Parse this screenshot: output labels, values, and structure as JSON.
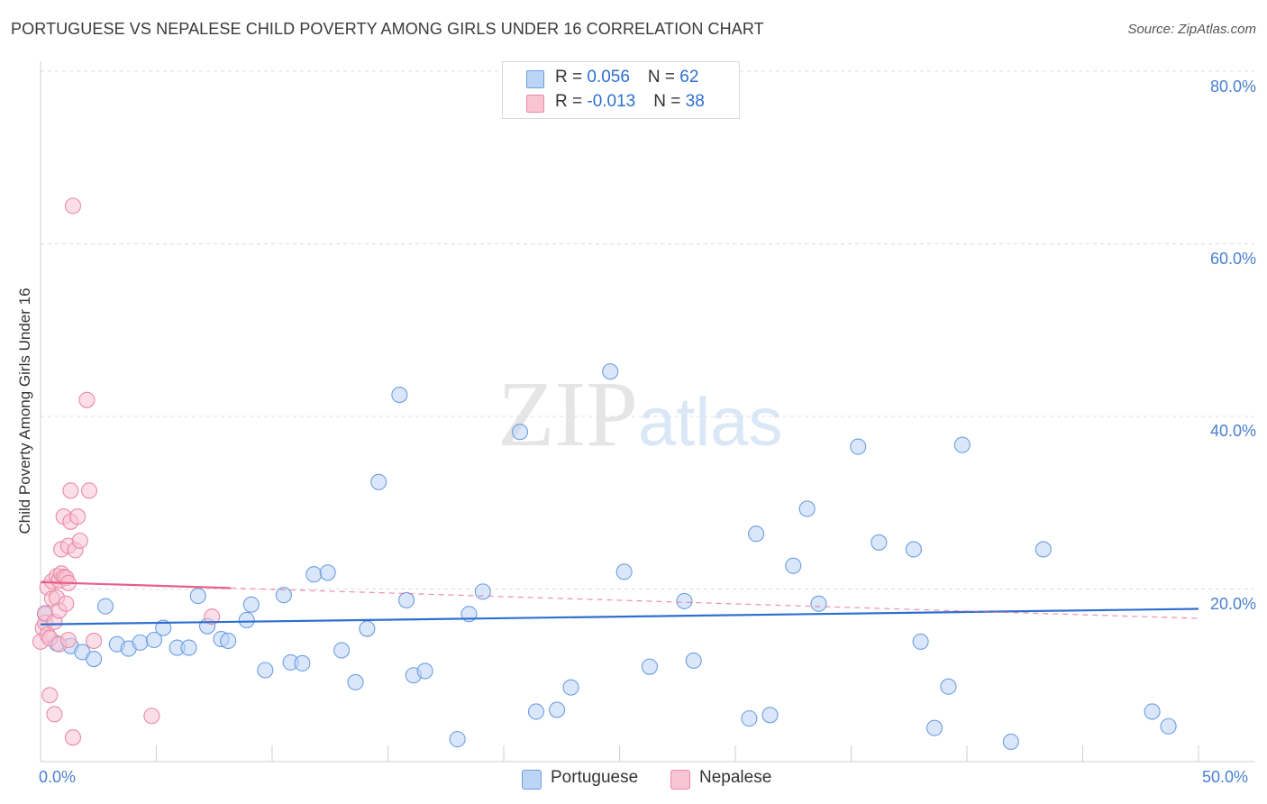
{
  "title": "PORTUGUESE VS NEPALESE CHILD POVERTY AMONG GIRLS UNDER 16 CORRELATION CHART",
  "source": "Source: ZipAtlas.com",
  "watermark": {
    "zip": "ZIP",
    "atlas": "atlas"
  },
  "colors": {
    "portuguese_fill": "#bcd4f5",
    "portuguese_stroke": "#6d9ee0",
    "portuguese_line": "#2f6fd0",
    "nepalese_fill": "#f8c3d3",
    "nepalese_stroke": "#e98aa8",
    "nepalese_line": "#e8608a",
    "axis_text": "#4a7fd0",
    "grid": "#dddddd"
  },
  "legend": {
    "portuguese": {
      "r_label": "R = ",
      "r_value": "0.056",
      "n_label": "N = ",
      "n_value": "62"
    },
    "nepalese": {
      "r_label": "R = ",
      "r_value": "-0.013",
      "n_label": "N = ",
      "n_value": "38"
    }
  },
  "bottom_legend": {
    "portuguese": "Portuguese",
    "nepalese": "Nepalese"
  },
  "chart_data": {
    "type": "scatter",
    "title": "PORTUGUESE VS NEPALESE CHILD POVERTY AMONG GIRLS UNDER 16 CORRELATION CHART",
    "xlabel": "",
    "ylabel": "Child Poverty Among Girls Under 16",
    "xlim": [
      0,
      50
    ],
    "ylim": [
      0,
      80
    ],
    "x_tick_labels": [
      "0.0%",
      "50.0%"
    ],
    "y_tick_labels": [
      "80.0%",
      "60.0%",
      "40.0%",
      "20.0%"
    ],
    "y_ticks": [
      80,
      60,
      40,
      20
    ],
    "grid": true,
    "legend_position": "top-center",
    "series": [
      {
        "name": "Portuguese",
        "r": 0.056,
        "n": 62,
        "trend": {
          "x0": 0,
          "y0": 15.9,
          "x1": 50,
          "y1": 17.7,
          "solid_to": 50
        },
        "points": [
          [
            0.2,
            17.1
          ],
          [
            0.7,
            13.7
          ],
          [
            1.3,
            13.4
          ],
          [
            1.8,
            12.7
          ],
          [
            2.3,
            11.9
          ],
          [
            2.8,
            18.0
          ],
          [
            3.3,
            13.6
          ],
          [
            3.8,
            13.1
          ],
          [
            4.3,
            13.8
          ],
          [
            4.9,
            14.1
          ],
          [
            5.3,
            15.5
          ],
          [
            5.9,
            13.2
          ],
          [
            6.4,
            13.2
          ],
          [
            6.8,
            19.2
          ],
          [
            7.2,
            15.7
          ],
          [
            7.8,
            14.2
          ],
          [
            8.1,
            14.0
          ],
          [
            8.9,
            16.4
          ],
          [
            9.1,
            18.2
          ],
          [
            9.7,
            10.6
          ],
          [
            10.5,
            19.3
          ],
          [
            10.8,
            11.5
          ],
          [
            11.3,
            11.4
          ],
          [
            11.8,
            21.7
          ],
          [
            12.4,
            21.9
          ],
          [
            13.0,
            12.9
          ],
          [
            13.6,
            9.2
          ],
          [
            14.1,
            15.4
          ],
          [
            14.6,
            32.4
          ],
          [
            15.5,
            42.5
          ],
          [
            15.8,
            18.7
          ],
          [
            16.1,
            10.0
          ],
          [
            16.6,
            10.5
          ],
          [
            18.0,
            2.6
          ],
          [
            18.5,
            17.1
          ],
          [
            19.1,
            19.7
          ],
          [
            20.7,
            38.2
          ],
          [
            21.4,
            5.8
          ],
          [
            22.3,
            6.0
          ],
          [
            22.9,
            8.6
          ],
          [
            24.6,
            45.2
          ],
          [
            25.2,
            22.0
          ],
          [
            26.3,
            11.0
          ],
          [
            27.8,
            18.6
          ],
          [
            28.2,
            11.7
          ],
          [
            30.6,
            5.0
          ],
          [
            30.9,
            26.4
          ],
          [
            31.5,
            5.4
          ],
          [
            32.5,
            22.7
          ],
          [
            33.1,
            29.3
          ],
          [
            33.6,
            18.3
          ],
          [
            35.3,
            36.5
          ],
          [
            36.2,
            25.4
          ],
          [
            37.7,
            24.6
          ],
          [
            38.0,
            13.9
          ],
          [
            38.6,
            3.9
          ],
          [
            39.2,
            8.7
          ],
          [
            39.8,
            36.7
          ],
          [
            41.9,
            2.3
          ],
          [
            43.3,
            24.6
          ],
          [
            48.0,
            5.8
          ],
          [
            48.7,
            4.1
          ]
        ]
      },
      {
        "name": "Nepalese",
        "r": -0.013,
        "n": 38,
        "trend": {
          "x0": 0,
          "y0": 20.8,
          "x1": 50,
          "y1": 16.6,
          "solid_to": 8.2
        },
        "points": [
          [
            0.0,
            13.9
          ],
          [
            0.1,
            15.5
          ],
          [
            0.2,
            16.1
          ],
          [
            0.2,
            17.2
          ],
          [
            0.3,
            14.7
          ],
          [
            0.3,
            20.2
          ],
          [
            0.4,
            7.7
          ],
          [
            0.4,
            14.3
          ],
          [
            0.5,
            20.9
          ],
          [
            0.5,
            18.9
          ],
          [
            0.6,
            5.5
          ],
          [
            0.6,
            16.2
          ],
          [
            0.7,
            21.5
          ],
          [
            0.7,
            19.0
          ],
          [
            0.8,
            13.6
          ],
          [
            0.8,
            21.0
          ],
          [
            0.8,
            17.5
          ],
          [
            0.9,
            21.8
          ],
          [
            0.9,
            24.6
          ],
          [
            1.0,
            28.4
          ],
          [
            1.0,
            21.4
          ],
          [
            1.1,
            18.3
          ],
          [
            1.1,
            21.3
          ],
          [
            1.2,
            25.0
          ],
          [
            1.2,
            14.1
          ],
          [
            1.2,
            20.7
          ],
          [
            1.3,
            31.4
          ],
          [
            1.3,
            27.8
          ],
          [
            1.4,
            2.8
          ],
          [
            1.4,
            64.4
          ],
          [
            1.5,
            24.5
          ],
          [
            1.6,
            28.4
          ],
          [
            1.7,
            25.6
          ],
          [
            2.0,
            41.9
          ],
          [
            2.1,
            31.4
          ],
          [
            2.3,
            14.0
          ],
          [
            4.8,
            5.3
          ],
          [
            7.4,
            16.8
          ]
        ]
      }
    ]
  }
}
